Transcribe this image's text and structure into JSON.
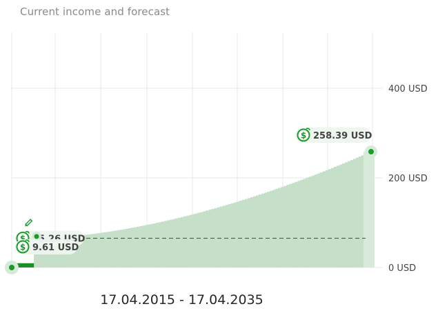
{
  "header": {
    "title": "Current income and forecast"
  },
  "footer": {
    "date_range": "17.04.2015 - 17.04.2035"
  },
  "labels": {
    "end_value": "258.39 USD",
    "target_value": "65.26 USD",
    "current_value": "9.61 USD"
  },
  "colors": {
    "forecast_bar": "#c5dfc8",
    "current_bar": "#1a8f28",
    "accent": "#1a9a2a",
    "gridline": "#e8e8e8",
    "dashed_line": "#555555",
    "label_bg": "#eef5ee"
  },
  "icons": [
    "dollar-coin-icon",
    "pencil-icon"
  ],
  "chart_data": {
    "type": "bar",
    "title": "Current income and forecast",
    "y_unit": "USD",
    "ylim": [
      0,
      400
    ],
    "y_ticks": [
      {
        "value": 0,
        "label": "0 USD"
      },
      {
        "value": 200,
        "label": "200 USD"
      },
      {
        "value": 400,
        "label": "400 USD"
      }
    ],
    "grid": true,
    "period": "17.04.2015 - 17.04.2035",
    "start_value": 0,
    "current_value": 9.61,
    "target_value": 65.26,
    "end_value": 258.39,
    "growth_curve_exponent": 1.7,
    "bar_count": 130,
    "current_bar_count": 8
  }
}
